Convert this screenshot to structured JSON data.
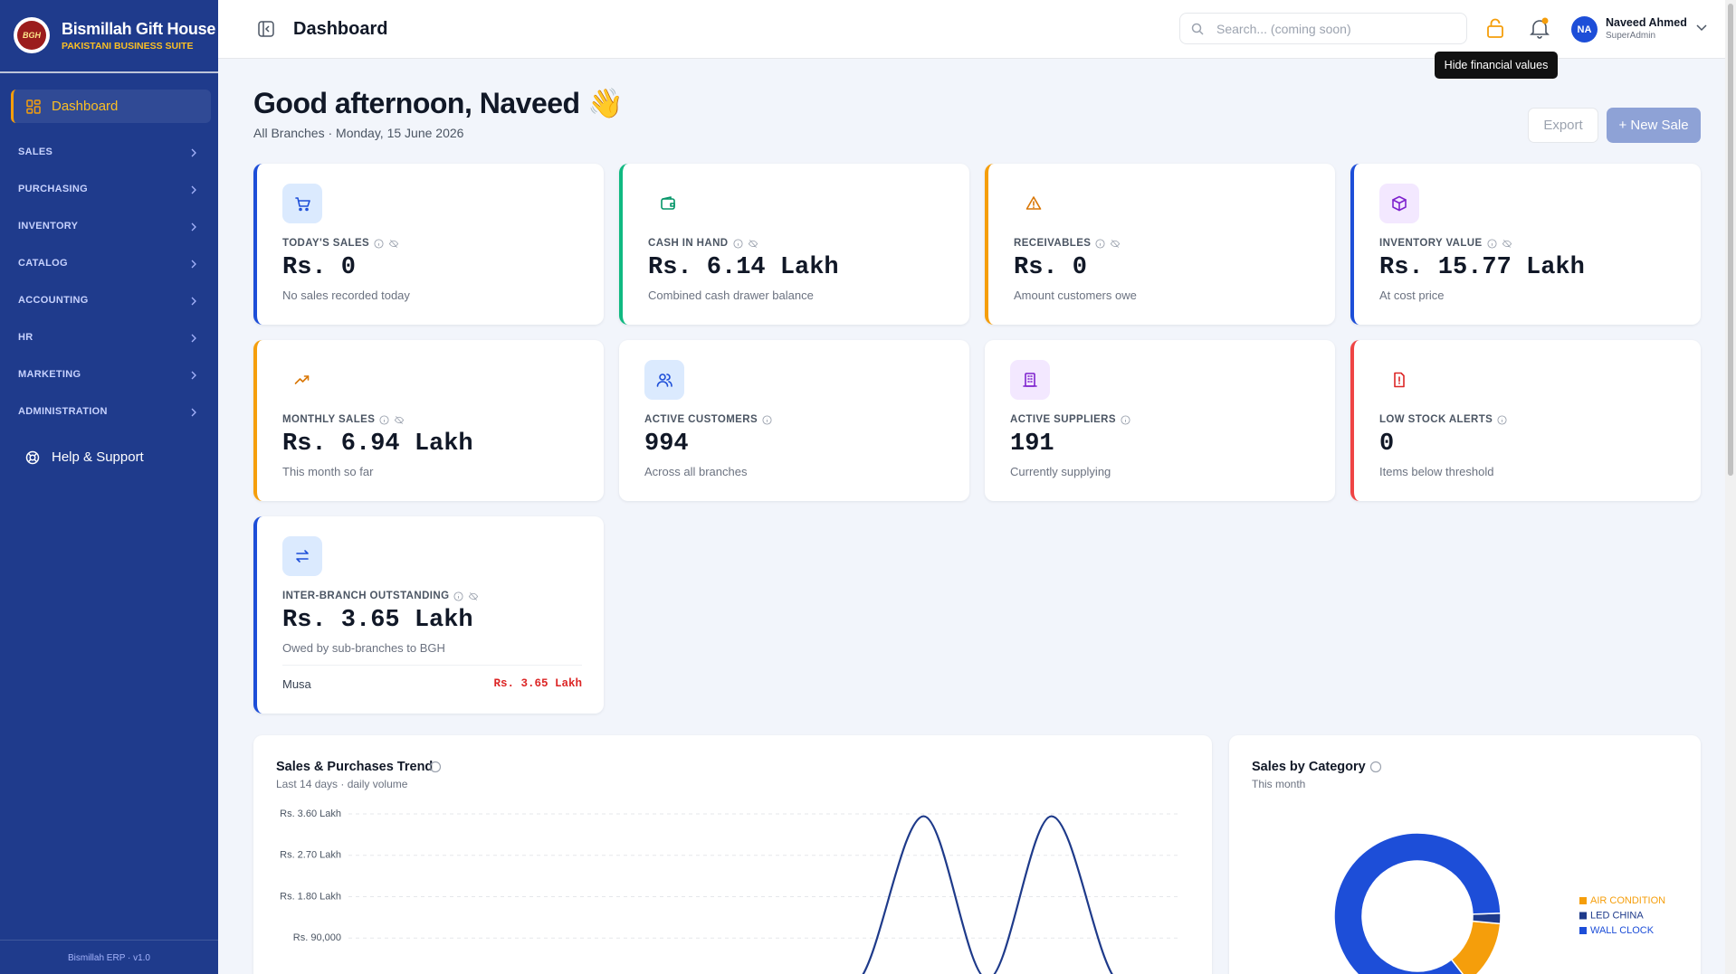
{
  "sidebar": {
    "logo": "BGH",
    "brand": "Bismillah Gift House",
    "tagline": "PAKISTANI BUSINESS SUITE",
    "active": "Dashboard",
    "sections": [
      "SALES",
      "PURCHASING",
      "INVENTORY",
      "CATALOG",
      "ACCOUNTING",
      "HR",
      "MARKETING",
      "ADMINISTRATION"
    ],
    "help": "Help & Support",
    "footer": "Bismillah ERP · v1.0"
  },
  "header": {
    "title": "Dashboard",
    "search_placeholder": "Search... (coming soon)",
    "user_initials": "NA",
    "user_name": "Naveed Ahmed",
    "user_role": "SuperAdmin",
    "tooltip": "Hide financial values"
  },
  "greeting": {
    "title": "Good afternoon, Naveed 👋",
    "subtitle": "All Branches · Monday, 15 June 2026",
    "export": "Export",
    "new_sale": "+ New Sale"
  },
  "cards": [
    {
      "label": "TODAY'S SALES",
      "value": "Rs. 0",
      "note": "No sales recorded today"
    },
    {
      "label": "CASH IN HAND",
      "value": "Rs. 6.14 Lakh",
      "note": "Combined cash drawer balance"
    },
    {
      "label": "RECEIVABLES",
      "value": "Rs. 0",
      "note": "Amount customers owe"
    },
    {
      "label": "INVENTORY VALUE",
      "value": "Rs. 15.77 Lakh",
      "note": "At cost price"
    },
    {
      "label": "MONTHLY SALES",
      "value": "Rs. 6.94 Lakh",
      "note": "This month so far"
    },
    {
      "label": "ACTIVE CUSTOMERS",
      "value": 994,
      "note": "Across all branches"
    },
    {
      "label": "ACTIVE SUPPLIERS",
      "value": 191,
      "note": "Currently supplying"
    },
    {
      "label": "LOW STOCK ALERTS",
      "value": 0,
      "note": "Items below threshold"
    },
    {
      "label": "INTER-BRANCH OUTSTANDING",
      "value": "Rs. 3.65 Lakh",
      "note": "Owed by sub-branches to BGH",
      "rows": [
        {
          "branch": "Musa",
          "amount": "Rs. 3.65 Lakh"
        }
      ]
    }
  ],
  "trend_chart": {
    "type": "line",
    "title": "Sales & Purchases Trend",
    "subtitle": "Last 14 days · daily volume",
    "ylim": [
      0,
      360000
    ],
    "yticks": [
      {
        "value": 360000,
        "label": "Rs. 3.60 Lakh"
      },
      {
        "value": 270000,
        "label": "Rs. 2.70 Lakh"
      },
      {
        "value": 180000,
        "label": "Rs. 1.80 Lakh"
      },
      {
        "value": 90000,
        "label": "Rs. 90,000"
      }
    ],
    "grid": true,
    "series": [
      {
        "color": "#1e3a8a",
        "values": [
          0,
          0,
          0,
          0,
          0,
          0,
          0,
          0,
          0,
          355000,
          0,
          355000,
          0,
          0
        ]
      }
    ]
  },
  "category_chart": {
    "type": "donut",
    "title": "Sales by Category",
    "subtitle": "This month",
    "categories": [
      "AIR CONDITION",
      "LED CHINA",
      "WALL CLOCK"
    ],
    "values": [
      13,
      2,
      85
    ],
    "colors": [
      "#f59e0b",
      "#1e3a8a",
      "#1d4ed8"
    ]
  }
}
